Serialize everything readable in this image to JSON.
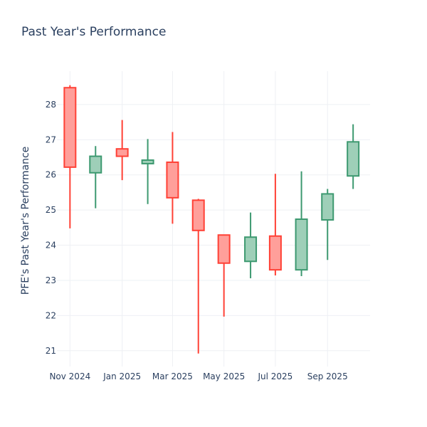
{
  "colors": {
    "increasing_line": "#3d9970",
    "increasing_fill": "#9ecfb8",
    "decreasing_line": "#ff4136",
    "decreasing_fill": "#ff9f9a",
    "grid": "#eef0f4",
    "text": "#2a3f5f"
  },
  "chart_data": {
    "type": "candlestick",
    "title": "Past Year's Performance",
    "xlabel": "",
    "ylabel": "PFE's Past Year's Performance",
    "ylim": [
      20.55,
      28.95
    ],
    "y_ticks": [
      21,
      22,
      23,
      24,
      25,
      26,
      27,
      28
    ],
    "x_ticks": [
      {
        "label": "Nov 2024",
        "pos": 0
      },
      {
        "label": "Jan 2025",
        "pos": 2
      },
      {
        "label": "Mar 2025",
        "pos": 3.93
      },
      {
        "label": "May 2025",
        "pos": 5.9
      },
      {
        "label": "Jul 2025",
        "pos": 7.87
      },
      {
        "label": "Sep 2025",
        "pos": 9.87
      }
    ],
    "x_range": [
      -0.5,
      11.5
    ],
    "candles": [
      {
        "x": 0,
        "period": "2024-11",
        "open": 28.48,
        "high": 28.55,
        "low": 24.48,
        "close": 26.22
      },
      {
        "x": 0.98,
        "period": "2024-12",
        "open": 26.06,
        "high": 26.82,
        "low": 25.05,
        "close": 26.53
      },
      {
        "x": 2,
        "period": "2025-01",
        "open": 26.74,
        "high": 27.56,
        "low": 25.85,
        "close": 26.53
      },
      {
        "x": 2.98,
        "period": "2025-02",
        "open": 26.32,
        "high": 27.02,
        "low": 25.17,
        "close": 26.42
      },
      {
        "x": 3.93,
        "period": "2025-03",
        "open": 26.36,
        "high": 27.22,
        "low": 24.61,
        "close": 25.35
      },
      {
        "x": 4.92,
        "period": "2025-04",
        "open": 25.28,
        "high": 25.32,
        "low": 20.92,
        "close": 24.42
      },
      {
        "x": 5.9,
        "period": "2025-05",
        "open": 24.29,
        "high": 24.3,
        "low": 21.97,
        "close": 23.49
      },
      {
        "x": 6.92,
        "period": "2025-06",
        "open": 23.54,
        "high": 24.93,
        "low": 23.06,
        "close": 24.23
      },
      {
        "x": 7.87,
        "period": "2025-07",
        "open": 24.26,
        "high": 26.03,
        "low": 23.14,
        "close": 23.3
      },
      {
        "x": 8.87,
        "period": "2025-08",
        "open": 23.3,
        "high": 26.1,
        "low": 23.12,
        "close": 24.74
      },
      {
        "x": 9.87,
        "period": "2025-09",
        "open": 24.72,
        "high": 25.6,
        "low": 23.58,
        "close": 25.46
      },
      {
        "x": 10.85,
        "period": "2025-10",
        "open": 25.97,
        "high": 27.44,
        "low": 25.6,
        "close": 26.94
      }
    ]
  }
}
